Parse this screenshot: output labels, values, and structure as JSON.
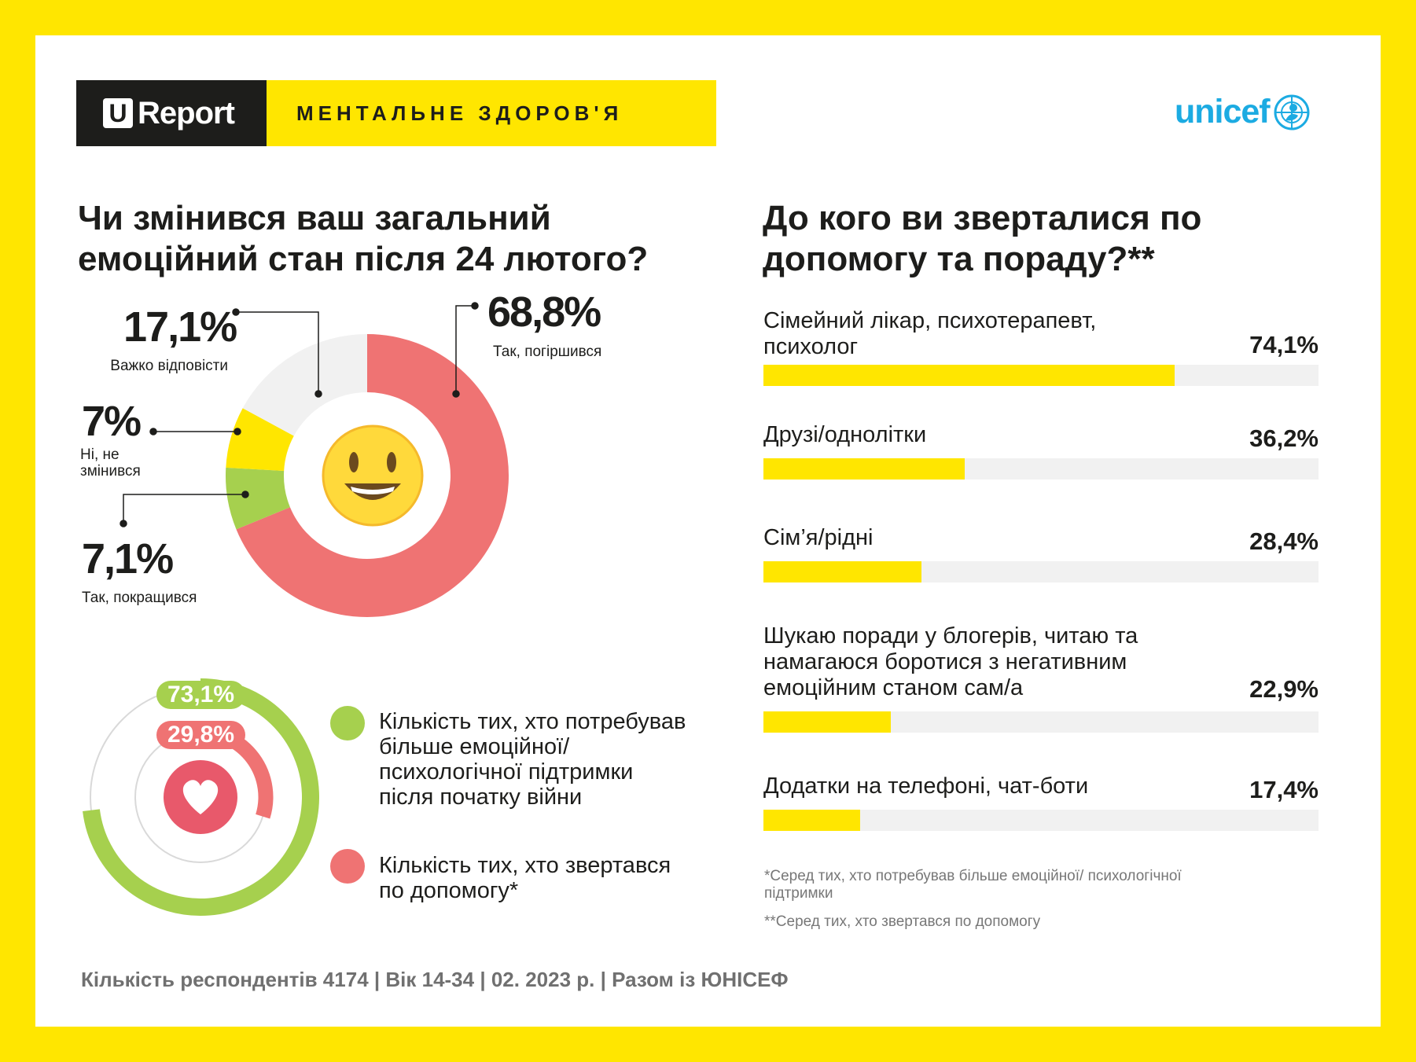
{
  "header": {
    "brand_letter": "U",
    "brand_word": "Report",
    "theme": "МЕНТАЛЬНЕ ЗДОРОВ'Я",
    "partner": "unicef"
  },
  "colors": {
    "yellow": "#FFE600",
    "red": "#EF7373",
    "green": "#A6D04E",
    "grey": "#F1F1F1",
    "unicef_blue": "#1CABE2",
    "dark": "#1D1D1B"
  },
  "left_title": "Чи змінився ваш загальний емоційний стан після 24 лютого?",
  "right_title": "До кого ви зверталися по допомогу та пораду?**",
  "chart_data": [
    {
      "type": "pie",
      "title": "Чи змінився ваш загальний емоційний стан після 24 лютого?",
      "center_icon": "smiley-emoji-icon",
      "slices": [
        {
          "label": "Так, погіршився",
          "value": 68.8,
          "display": "68,8%",
          "color": "#EF7373"
        },
        {
          "label": "Так, покращився",
          "value": 7.1,
          "display": "7,1%",
          "color": "#A6D04E"
        },
        {
          "label": "Ні, не змінився",
          "value": 7.0,
          "display": "7%",
          "color": "#FFE600"
        },
        {
          "label": "Важко відповісти",
          "value": 17.1,
          "display": "17,1%",
          "color": "#F1F1F1"
        }
      ]
    },
    {
      "type": "pie",
      "center_icon": "heart-icon",
      "series": [
        {
          "name": "Кількість тих, хто потребував більше емоційної/психологічної підтримки після початку війни",
          "value": 73.1,
          "display": "73,1%",
          "color": "#A6D04E"
        },
        {
          "name": "Кількість тих, хто звертався по допомогу*",
          "value": 29.8,
          "display": "29,8%",
          "color": "#EF7373"
        }
      ]
    },
    {
      "type": "bar",
      "orientation": "horizontal",
      "title": "До кого ви зверталися по допомогу та пораду?**",
      "xlim": [
        0,
        100
      ],
      "categories": [
        "Сімейний лікар, психотерапевт, психолог",
        "Друзі/однолітки",
        "Сім’я/рідні",
        "Шукаю поради у блогерів, читаю та намагаюся боротися з негативним емоційним станом сам/а",
        "Додатки на телефоні, чат-боти"
      ],
      "values": [
        74.1,
        36.2,
        28.4,
        22.9,
        17.4
      ],
      "display": [
        "74,1%",
        "36,2%",
        "28,4%",
        "22,9%",
        "17,4%"
      ]
    }
  ],
  "notes": [
    "*Серед тих, хто потребував більше емоційної/ психологічної підтримки",
    "**Серед тих, хто звертався по допомогу"
  ],
  "footer": "Кількість респондентів 4174 |  Вік 14-34 | 02. 2023 р. | Разом із ЮНІСЕФ"
}
